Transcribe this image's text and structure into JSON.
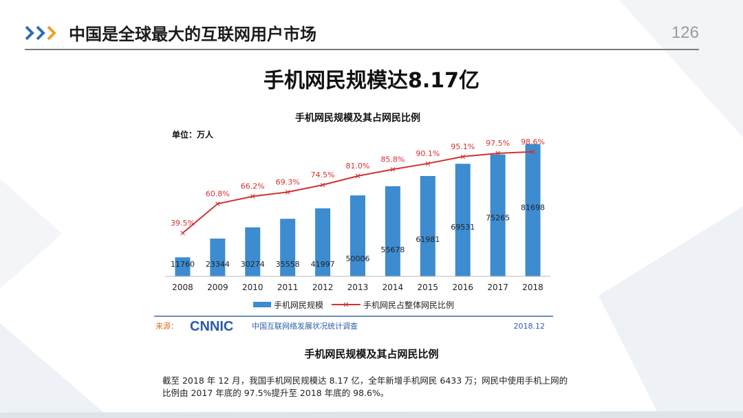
{
  "header": {
    "title": "中国是全球最大的互联网用户市场",
    "page_number": "126"
  },
  "main_heading": "手机网民规模达8.17亿",
  "chart_data": {
    "type": "bar",
    "title": "手机网民规模及其占网民比例",
    "unit_label": "单位：万人",
    "categories": [
      "2008",
      "2009",
      "2010",
      "2011",
      "2012",
      "2013",
      "2014",
      "2015",
      "2016",
      "2017",
      "2018"
    ],
    "series": [
      {
        "name": "手机网民规模",
        "type": "bar",
        "values": [
          11760,
          23344,
          30274,
          35558,
          41997,
          50006,
          55678,
          61981,
          69531,
          75265,
          81698
        ],
        "labels": [
          "11760",
          "23344",
          "30274",
          "35558",
          "41997",
          "50006",
          "55678",
          "61981",
          "69531",
          "75265",
          "81698"
        ],
        "color": "#3d8cd0"
      },
      {
        "name": "手机网民占整体网民比例",
        "type": "line",
        "values": [
          39.5,
          60.8,
          66.2,
          69.3,
          74.5,
          81.0,
          85.8,
          90.1,
          95.1,
          97.5,
          98.6
        ],
        "labels": [
          "39.5%",
          "60.8%",
          "66.2%",
          "69.3%",
          "74.5%",
          "81.0%",
          "85.8%",
          "90.1%",
          "95.1%",
          "97.5%",
          "98.6%"
        ],
        "color": "#d3312f"
      }
    ],
    "ylim_bars": [
      0,
      90000
    ],
    "ylim_line": [
      0,
      100
    ],
    "legend_position": "bottom",
    "grid": false,
    "source_label": "来源：",
    "source_logo": "CNNIC",
    "source_name": "中国互联网络发展状况统计调查",
    "source_date": "2018.12"
  },
  "chart_caption": "手机网民规模及其占网民比例",
  "description": "截至 2018 年 12 月，我国手机网民规模达 8.17 亿，全年新增手机网民 6433 万；网民中使用手机上网的比例由 2017 年底的 97.5%提升至 2018 年底的 98.6%。",
  "colors": {
    "accent_blue": "#2b6fb3",
    "accent_orange": "#f0a020",
    "bar_blue": "#3d8cd0",
    "line_red": "#d3312f"
  }
}
